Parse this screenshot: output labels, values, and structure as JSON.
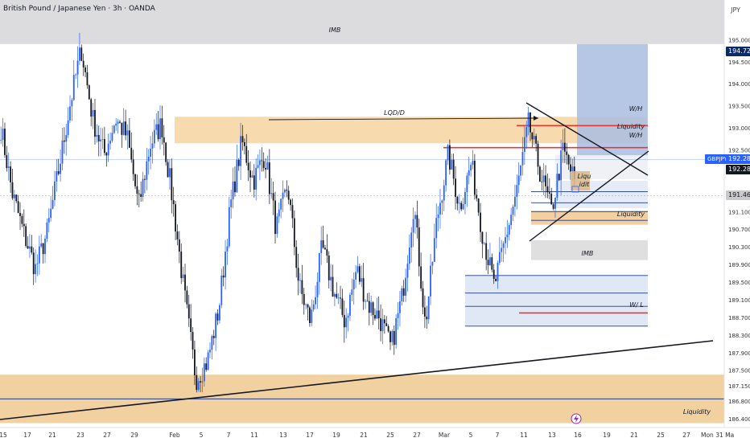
{
  "header": {
    "title": "British Pound / Japanese Yen · 3h · OANDA",
    "currency": "JPY"
  },
  "chart_data": {
    "type": "candlestick",
    "symbol": "GBPJPY",
    "timeframe": "3h",
    "ylim": [
      186.2,
      195.9
    ],
    "y_ticks": [
      195.0,
      194.5,
      194.0,
      193.5,
      193.0,
      192.5,
      191.5,
      191.1,
      190.7,
      190.3,
      189.9,
      189.5,
      189.1,
      188.7,
      188.3,
      187.9,
      187.5,
      187.15,
      186.8,
      186.4
    ],
    "y_tick_labels": [
      "195.000",
      "194.500",
      "194.000",
      "193.500",
      "193.000",
      "192.500",
      "191.500",
      "191.100",
      "190.700",
      "190.300",
      "189.900",
      "189.500",
      "189.100",
      "188.700",
      "188.300",
      "187.900",
      "187.500",
      "187.150",
      "186.800",
      "186.400"
    ],
    "x_ticks": [
      "15",
      "17",
      "21",
      "23",
      "27",
      "29",
      "Feb",
      "5",
      "7",
      "11",
      "13",
      "17",
      "19",
      "21",
      "25",
      "27",
      "Mar",
      "5",
      "7",
      "11",
      "13",
      "16",
      "19",
      "21",
      "25",
      "27",
      "Mon 31 Ma"
    ],
    "badges": [
      {
        "text": "194.727",
        "value": 194.727,
        "color": "#0b2a66"
      },
      {
        "text": "GBPJPY",
        "value": 192.284,
        "color": "#2962ff"
      },
      {
        "text": "192.284",
        "value": 192.284,
        "color": "#2962ff"
      },
      {
        "text": "192.280",
        "value": 192.28,
        "color": "#131722"
      },
      {
        "text": "191.465",
        "value": 191.465,
        "color": "#c9c9c9"
      }
    ],
    "zones": [
      {
        "label": "IMB",
        "y_top": 195.9,
        "y_bottom": 194.9,
        "color": "#d6d6d8"
      },
      {
        "label": "LQD/D",
        "y_top": 193.25,
        "y_bottom": 192.65,
        "color": "#f6d4a0"
      },
      {
        "label": "Liquidity",
        "y_top": 187.4,
        "y_bottom": 186.3,
        "color": "#efc98f"
      },
      {
        "label": "Liquidity",
        "y_top": 191.1,
        "y_bottom": 190.8,
        "color": "#f2c890"
      },
      {
        "label": "IMB",
        "y_top": 190.45,
        "y_bottom": 190.0,
        "color": "#d9d9db"
      },
      {
        "label": "",
        "y_top": 189.65,
        "y_bottom": 188.5,
        "color": "#dbe3f3"
      },
      {
        "label": "",
        "y_top": 194.9,
        "y_bottom": 192.35,
        "color": "#a9bde0"
      }
    ],
    "annotations": [
      "W/H",
      "Liquidity",
      "W/H",
      "Liquidity",
      "IMB",
      "W/ L",
      "Liquidity",
      "Liqu",
      "idit"
    ],
    "series": [
      {
        "name": "GBPJPY",
        "key_closes": [
          193.0,
          191.5,
          190.6,
          189.8,
          190.6,
          192.0,
          193.5,
          194.8,
          193.2,
          192.4,
          193.2,
          192.8,
          191.2,
          192.6,
          193.1,
          191.3,
          189.2,
          187.3,
          187.7,
          188.9,
          191.2,
          192.7,
          191.8,
          192.4,
          190.7,
          191.7,
          189.4,
          188.6,
          190.3,
          189.3,
          188.6,
          189.8,
          189.0,
          188.7,
          188.0,
          189.2,
          191.3,
          188.5,
          190.9,
          192.4,
          191.2,
          192.2,
          190.6,
          189.4,
          190.5,
          191.6,
          193.1,
          192.0,
          191.1,
          192.5,
          191.8
        ]
      }
    ]
  }
}
